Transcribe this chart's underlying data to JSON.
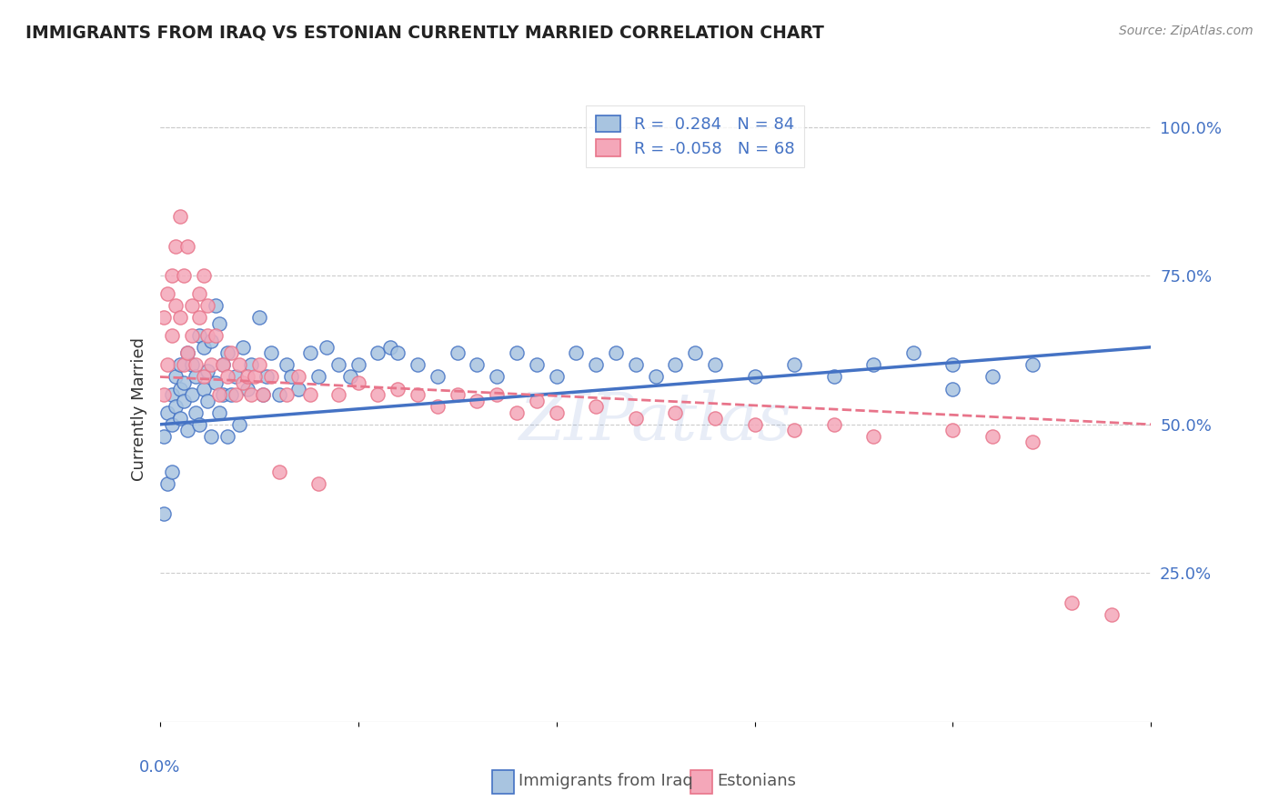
{
  "title": "IMMIGRANTS FROM IRAQ VS ESTONIAN CURRENTLY MARRIED CORRELATION CHART",
  "source": "Source: ZipAtlas.com",
  "ylabel": "Currently Married",
  "legend_label1": "Immigrants from Iraq",
  "legend_label2": "Estonians",
  "R1": 0.284,
  "N1": 84,
  "R2": -0.058,
  "N2": 68,
  "color_iraq_fill": "#a8c4e0",
  "color_estonian_fill": "#f4a7b9",
  "color_blue": "#4472c4",
  "color_pink": "#e8748a",
  "watermark": "ZIPatlas",
  "xmin": 0.0,
  "xmax": 0.25,
  "ymin": 0.0,
  "ymax": 1.05,
  "right_ytick_vals": [
    1.0,
    0.75,
    0.5,
    0.25
  ],
  "iraq_x": [
    0.001,
    0.002,
    0.003,
    0.003,
    0.004,
    0.004,
    0.005,
    0.005,
    0.005,
    0.006,
    0.006,
    0.007,
    0.007,
    0.008,
    0.008,
    0.009,
    0.009,
    0.01,
    0.01,
    0.011,
    0.011,
    0.012,
    0.012,
    0.013,
    0.013,
    0.014,
    0.014,
    0.015,
    0.015,
    0.016,
    0.016,
    0.017,
    0.017,
    0.018,
    0.019,
    0.02,
    0.021,
    0.022,
    0.023,
    0.025,
    0.026,
    0.027,
    0.028,
    0.03,
    0.032,
    0.033,
    0.035,
    0.038,
    0.04,
    0.042,
    0.045,
    0.048,
    0.05,
    0.055,
    0.058,
    0.06,
    0.065,
    0.07,
    0.075,
    0.08,
    0.085,
    0.09,
    0.095,
    0.1,
    0.105,
    0.11,
    0.115,
    0.12,
    0.125,
    0.13,
    0.135,
    0.14,
    0.15,
    0.16,
    0.17,
    0.18,
    0.19,
    0.2,
    0.21,
    0.22,
    0.002,
    0.003,
    0.001,
    0.2
  ],
  "iraq_y": [
    0.48,
    0.52,
    0.5,
    0.55,
    0.53,
    0.58,
    0.51,
    0.56,
    0.6,
    0.54,
    0.57,
    0.49,
    0.62,
    0.55,
    0.6,
    0.52,
    0.58,
    0.65,
    0.5,
    0.56,
    0.63,
    0.54,
    0.59,
    0.48,
    0.64,
    0.57,
    0.7,
    0.52,
    0.67,
    0.55,
    0.6,
    0.48,
    0.62,
    0.55,
    0.58,
    0.5,
    0.63,
    0.56,
    0.6,
    0.68,
    0.55,
    0.58,
    0.62,
    0.55,
    0.6,
    0.58,
    0.56,
    0.62,
    0.58,
    0.63,
    0.6,
    0.58,
    0.6,
    0.62,
    0.63,
    0.62,
    0.6,
    0.58,
    0.62,
    0.6,
    0.58,
    0.62,
    0.6,
    0.58,
    0.62,
    0.6,
    0.62,
    0.6,
    0.58,
    0.6,
    0.62,
    0.6,
    0.58,
    0.6,
    0.58,
    0.6,
    0.62,
    0.6,
    0.58,
    0.6,
    0.4,
    0.42,
    0.35,
    0.56
  ],
  "estonian_x": [
    0.001,
    0.001,
    0.002,
    0.002,
    0.003,
    0.003,
    0.004,
    0.004,
    0.005,
    0.005,
    0.006,
    0.006,
    0.007,
    0.007,
    0.008,
    0.008,
    0.009,
    0.01,
    0.01,
    0.011,
    0.011,
    0.012,
    0.012,
    0.013,
    0.014,
    0.015,
    0.016,
    0.017,
    0.018,
    0.019,
    0.02,
    0.021,
    0.022,
    0.023,
    0.024,
    0.025,
    0.026,
    0.028,
    0.03,
    0.032,
    0.035,
    0.038,
    0.04,
    0.045,
    0.05,
    0.055,
    0.06,
    0.065,
    0.07,
    0.075,
    0.08,
    0.085,
    0.09,
    0.095,
    0.1,
    0.11,
    0.12,
    0.13,
    0.14,
    0.15,
    0.16,
    0.17,
    0.18,
    0.2,
    0.21,
    0.22,
    0.23,
    0.24
  ],
  "estonian_y": [
    0.55,
    0.68,
    0.6,
    0.72,
    0.65,
    0.75,
    0.7,
    0.8,
    0.68,
    0.85,
    0.6,
    0.75,
    0.62,
    0.8,
    0.65,
    0.7,
    0.6,
    0.68,
    0.72,
    0.58,
    0.75,
    0.65,
    0.7,
    0.6,
    0.65,
    0.55,
    0.6,
    0.58,
    0.62,
    0.55,
    0.6,
    0.57,
    0.58,
    0.55,
    0.58,
    0.6,
    0.55,
    0.58,
    0.42,
    0.55,
    0.58,
    0.55,
    0.4,
    0.55,
    0.57,
    0.55,
    0.56,
    0.55,
    0.53,
    0.55,
    0.54,
    0.55,
    0.52,
    0.54,
    0.52,
    0.53,
    0.51,
    0.52,
    0.51,
    0.5,
    0.49,
    0.5,
    0.48,
    0.49,
    0.48,
    0.47,
    0.2,
    0.18
  ]
}
